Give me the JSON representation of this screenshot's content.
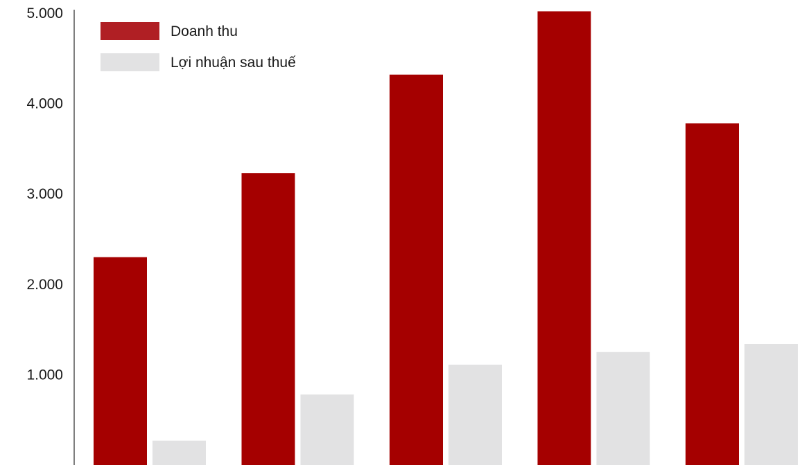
{
  "chart_data": {
    "type": "bar",
    "categories": [
      "",
      "",
      "",
      "",
      ""
    ],
    "series": [
      {
        "name": "Doanh thu",
        "color": "#a50000",
        "legend_color": "#b01f24",
        "values": [
          2300,
          3230,
          4320,
          5020,
          3780
        ]
      },
      {
        "name": "Lợi nhuận sau thuế",
        "color": "#e2e2e3",
        "values": [
          270,
          780,
          1110,
          1250,
          1340
        ]
      }
    ],
    "title": "",
    "xlabel": "",
    "ylabel": "",
    "ylim": [
      0,
      5000
    ],
    "yticks": [
      {
        "value": 1000,
        "label": "1.000"
      },
      {
        "value": 2000,
        "label": "2.000"
      },
      {
        "value": 3000,
        "label": "3.000"
      },
      {
        "value": 4000,
        "label": "4.000"
      },
      {
        "value": 5000,
        "label": "5.000"
      }
    ],
    "grid": false,
    "legend_position": "top-left"
  }
}
